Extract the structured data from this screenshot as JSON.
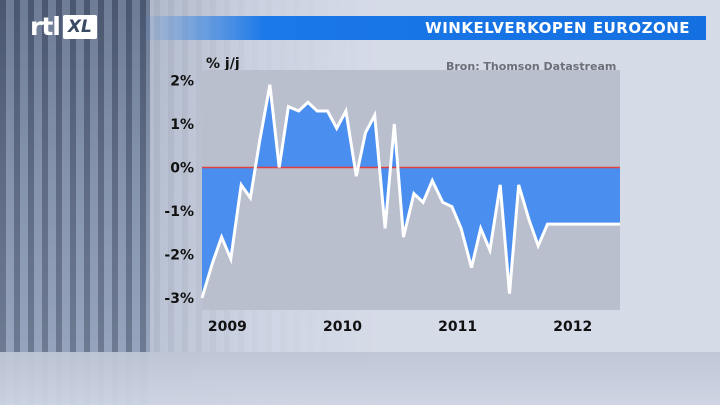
{
  "header": {
    "logo_text": "rtl",
    "logo_badge": "XL",
    "title": "WINKELVERKOPEN EUROZONE"
  },
  "colors": {
    "title_bar": "#1470e0",
    "fill": "#4a8ff0",
    "line": "#ffffff",
    "zero_line": "#e04040",
    "plot_bg": "#b9bfcc"
  },
  "chart_data": {
    "type": "area",
    "title": "WINKELVERKOPEN EUROZONE",
    "ylabel": "% j/j",
    "source": "Bron: Thomson Datastream",
    "ylim": [
      -3.2,
      2.3
    ],
    "yticks": [
      2,
      1,
      0,
      -1,
      -2,
      -3
    ],
    "ytick_labels": [
      "2%",
      "1%",
      "0%",
      "-1%",
      "-2%",
      "-3%"
    ],
    "xlim": [
      2008.83,
      2012.46
    ],
    "xtick_labels": [
      {
        "label": "2009",
        "x": 2009.05
      },
      {
        "label": "2010",
        "x": 2010.05
      },
      {
        "label": "2011",
        "x": 2011.05
      },
      {
        "label": "2012",
        "x": 2012.05
      }
    ],
    "series": [
      {
        "x": [
          2008.83,
          2008.92,
          2009.0,
          2009.08,
          2009.17,
          2009.25,
          2009.33,
          2009.42,
          2009.5,
          2009.58,
          2009.67,
          2009.75,
          2009.83,
          2009.92,
          2010.0,
          2010.08,
          2010.17,
          2010.25,
          2010.33,
          2010.42,
          2010.5,
          2010.58,
          2010.67,
          2010.75,
          2010.83,
          2010.92,
          2011.0,
          2011.08,
          2011.17,
          2011.25,
          2011.33,
          2011.42,
          2011.5,
          2011.58,
          2011.67,
          2011.75,
          2011.83,
          2011.92,
          2012.0,
          2012.08,
          2012.17,
          2012.25,
          2012.33,
          2012.46
        ],
        "values": [
          -3.0,
          -2.2,
          -1.6,
          -2.1,
          -0.4,
          -0.7,
          0.6,
          1.9,
          0.0,
          1.4,
          1.3,
          1.5,
          1.3,
          1.3,
          0.9,
          1.3,
          -0.2,
          0.8,
          1.2,
          -1.4,
          1.0,
          -1.6,
          -0.6,
          -0.8,
          -0.3,
          -0.8,
          -0.9,
          -1.4,
          -2.3,
          -1.4,
          -1.9,
          -0.4,
          -2.9,
          -0.4,
          -1.2,
          -1.8,
          -1.3,
          -1.3,
          -1.3,
          -1.3,
          -1.3,
          -1.3,
          -1.3,
          -1.3
        ]
      }
    ]
  }
}
